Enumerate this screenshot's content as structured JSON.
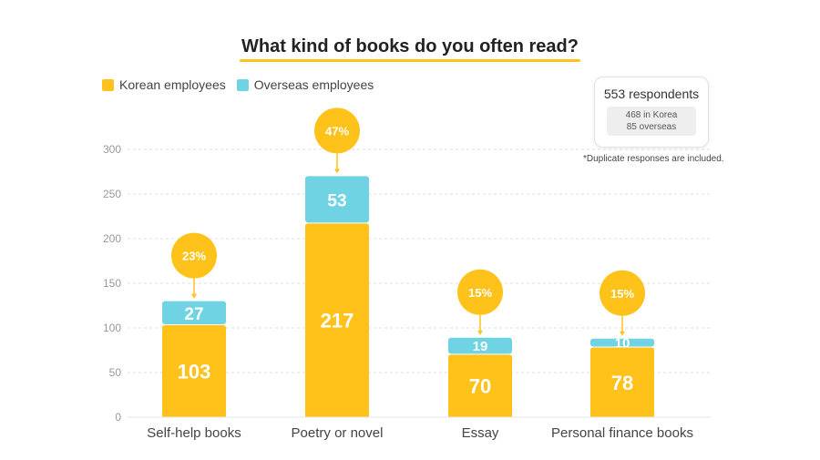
{
  "title": "What kind of books do you often read?",
  "legend": {
    "korean": "Korean employees",
    "overseas": "Overseas employees"
  },
  "respondents": {
    "total": "553 respondents",
    "korea": "468 in Korea",
    "overseas": "85 overseas"
  },
  "footnote": "*Duplicate responses are included.",
  "colors": {
    "korean": "#FFC21A",
    "overseas": "#6FD3E3",
    "accent": "#FFC21A"
  },
  "chart_data": {
    "type": "bar",
    "stacked": true,
    "title": "What kind of books do you often read?",
    "categories": [
      "Self-help books",
      "Poetry or novel",
      "Essay",
      "Personal finance books"
    ],
    "series": [
      {
        "name": "Korean employees",
        "values": [
          103,
          217,
          70,
          78
        ]
      },
      {
        "name": "Overseas employees",
        "values": [
          27,
          53,
          19,
          10
        ]
      }
    ],
    "percent_labels": [
      "23%",
      "47%",
      "15%",
      "15%"
    ],
    "ylim": [
      0,
      300
    ],
    "yticks": [
      0,
      50,
      100,
      150,
      200,
      250,
      300
    ],
    "grid": true,
    "xlabel": "",
    "ylabel": "",
    "legend_position": "top-left"
  }
}
